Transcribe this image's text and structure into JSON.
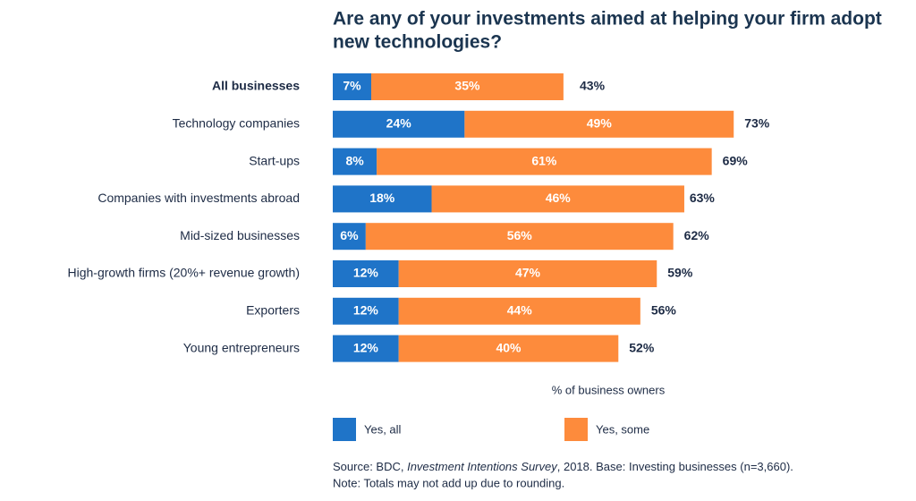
{
  "chart_data": {
    "type": "stacked-bar-horizontal",
    "title": [
      "Are any of your investments aimed at helping your firm adopt",
      "new technologies?"
    ],
    "categories": [
      "All businesses",
      "Technology companies",
      "Start-ups",
      "Companies with investments abroad",
      "Mid-sized businesses",
      "High-growth firms (20%+ revenue growth)",
      "Exporters",
      "Young entrepreneurs"
    ],
    "series": [
      {
        "name": "Yes, all",
        "color": "#1f74c8",
        "values": [
          7,
          24,
          8,
          18,
          6,
          12,
          12,
          12
        ],
        "value_labels": [
          "7%",
          "24%",
          "8%",
          "18%",
          "6%",
          "12%",
          "12%",
          "12%"
        ]
      },
      {
        "name": "Yes, some",
        "color": "#fd8b3c",
        "values": [
          35,
          49,
          61,
          46,
          56,
          47,
          44,
          40
        ],
        "value_labels": [
          "35%",
          "49%",
          "61%",
          "46%",
          "56%",
          "47%",
          "44%",
          "40%"
        ]
      }
    ],
    "totals": [
      43,
      73,
      69,
      63,
      62,
      59,
      56,
      52
    ],
    "total_labels": [
      "43%",
      "73%",
      "69%",
      "63%",
      "62%",
      "59%",
      "56%",
      "52%"
    ],
    "xlim": [
      0,
      100
    ],
    "x_label": "% of business owners",
    "source": {
      "prefix": "Source: BDC, ",
      "italic": "Investment Intentions Survey",
      "suffix": ", 2018. Base: Investing businesses (n=3,660)."
    },
    "note": "Note: Totals may not add up due to rounding."
  }
}
